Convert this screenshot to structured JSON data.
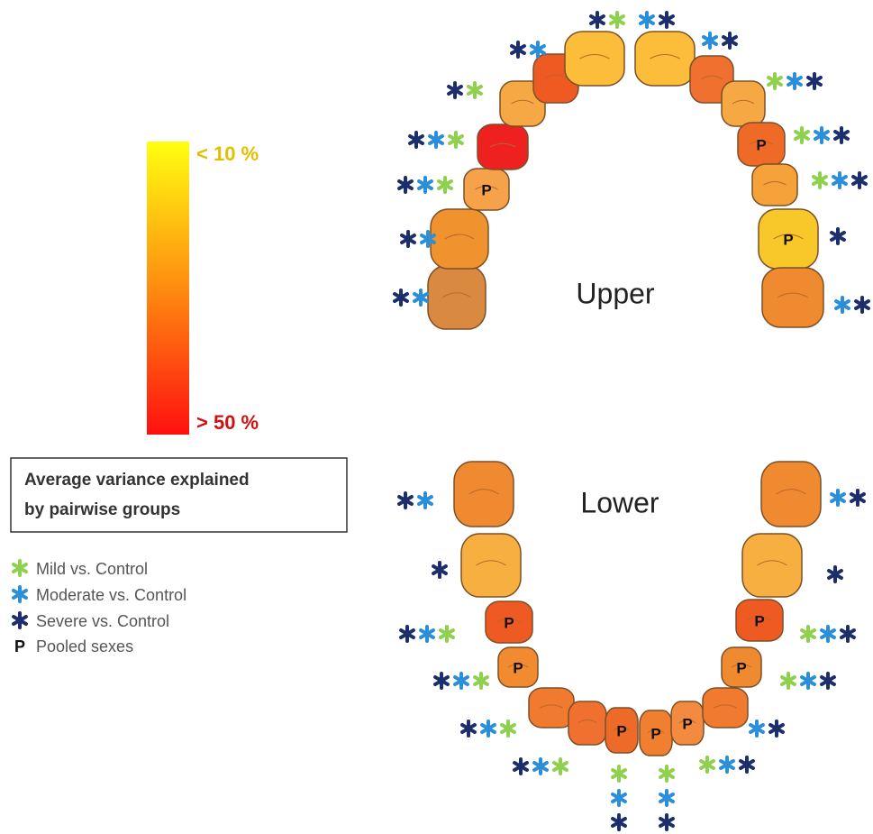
{
  "color_scale": {
    "top_label": "< 10 %",
    "bottom_label": "> 50 %"
  },
  "legend_box": {
    "lines": [
      "Average  variance explained",
      "by pairwise groups"
    ]
  },
  "legend": {
    "items": [
      "Mild vs. Control",
      "Moderate vs. Control",
      "Severe vs. Control"
    ],
    "pooled": {
      "symbol": "P",
      "label": "Pooled sexes"
    }
  },
  "upper": {
    "label": "Upper",
    "tooth_labels": [
      "P",
      "P",
      "P"
    ]
  },
  "lower": {
    "label": "Lower",
    "tooth_labels": [
      "P",
      "P",
      "P",
      "P",
      "P",
      "P",
      "P"
    ]
  }
}
